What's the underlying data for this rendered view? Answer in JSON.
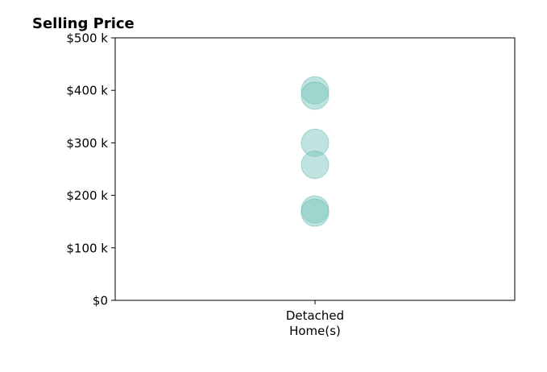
{
  "chart_data": {
    "type": "scatter",
    "title": "Selling Price",
    "xlabel": "",
    "ylabel": "",
    "categories": [
      "Detached\nHome(s)"
    ],
    "ylim": [
      0,
      500000
    ],
    "y_ticks": [
      0,
      100000,
      200000,
      300000,
      400000,
      500000
    ],
    "y_tick_labels": [
      "$0",
      "$100 k",
      "$200 k",
      "$300 k",
      "$400 k",
      "$500 k"
    ],
    "grid": false,
    "series": [
      {
        "category": "Detached\nHome(s)",
        "values": [
          400000,
          390000,
          300000,
          258000,
          173000,
          167000
        ]
      }
    ],
    "marker_color": "#7fc8c0",
    "marker_edge_color": "#5fb5ab",
    "marker_alpha": 0.5
  }
}
